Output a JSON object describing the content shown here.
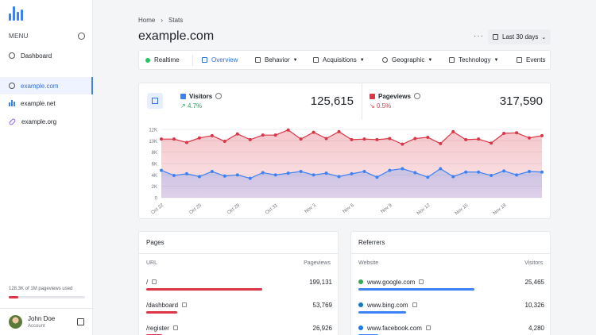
{
  "sidebar": {
    "menu_label": "MENU",
    "items": [
      {
        "label": "Dashboard"
      },
      {
        "label": "example.com"
      },
      {
        "label": "example.net"
      },
      {
        "label": "example.org"
      }
    ],
    "usage_text": "128.3K of 1M pageviews used",
    "usage_fraction": 0.128,
    "user": {
      "name": "John Doe",
      "role": "Account"
    }
  },
  "breadcrumb": {
    "home": "Home",
    "current": "Stats"
  },
  "page_title": "example.com",
  "date_range": "Last 30 days",
  "tabs": [
    {
      "label": "Realtime"
    },
    {
      "label": "Overview"
    },
    {
      "label": "Behavior"
    },
    {
      "label": "Acquisitions"
    },
    {
      "label": "Geographic"
    },
    {
      "label": "Technology"
    },
    {
      "label": "Events"
    }
  ],
  "metrics": {
    "visitors": {
      "name": "Visitors",
      "change": "4.7%",
      "total": "125,615",
      "color": "#3b82f6"
    },
    "pageviews": {
      "name": "Pageviews",
      "change": "0.5%",
      "total": "317,590",
      "color": "#dc3545"
    }
  },
  "chart_data": {
    "type": "line",
    "x_ticks": [
      "Oct 22",
      "Oct 25",
      "Oct 28",
      "Oct 31",
      "Nov 3",
      "Nov 6",
      "Nov 9",
      "Nov 12",
      "Nov 15",
      "Nov 18"
    ],
    "y_ticks": [
      "0",
      "2K",
      "4K",
      "6K",
      "8K",
      "10K",
      "12K"
    ],
    "ylim": [
      0,
      12000
    ],
    "series": [
      {
        "name": "Pageviews",
        "color": "#dc3545",
        "values": [
          10300,
          10300,
          9700,
          10500,
          10900,
          9900,
          11200,
          10200,
          11000,
          11000,
          11900,
          10300,
          11500,
          10400,
          11600,
          10200,
          10300,
          10200,
          10400,
          9400,
          10400,
          10600,
          9500,
          11600,
          10200,
          10300,
          9600,
          11300,
          11400,
          10500,
          10900
        ]
      },
      {
        "name": "Visitors",
        "color": "#3b82f6",
        "values": [
          4800,
          3900,
          4200,
          3700,
          4600,
          3800,
          4000,
          3400,
          4400,
          4000,
          4300,
          4600,
          4000,
          4300,
          3700,
          4200,
          4600,
          3600,
          4800,
          5100,
          4400,
          3600,
          5100,
          3700,
          4500,
          4500,
          3900,
          4700,
          4000,
          4600,
          4500
        ]
      }
    ]
  },
  "pages": {
    "title": "Pages",
    "col_label": "URL",
    "col_value": "Pageviews",
    "rows": [
      {
        "label": "/",
        "value": "199,131",
        "fraction": 1.0
      },
      {
        "label": "/dashboard",
        "value": "53,769",
        "fraction": 0.27
      },
      {
        "label": "/register",
        "value": "26,926",
        "fraction": 0.14
      }
    ]
  },
  "referrers": {
    "title": "Referrers",
    "col_label": "Website",
    "col_value": "Visitors",
    "rows": [
      {
        "label": "www.google.com",
        "value": "25,465",
        "fraction": 1.0,
        "icon": "google-icon",
        "icon_color": "#34a853"
      },
      {
        "label": "www.bing.com",
        "value": "10,326",
        "fraction": 0.41,
        "icon": "bing-icon",
        "icon_color": "#0f7cc5"
      },
      {
        "label": "www.facebook.com",
        "value": "4,280",
        "fraction": 0.17,
        "icon": "facebook-icon",
        "icon_color": "#1877f2"
      }
    ]
  }
}
